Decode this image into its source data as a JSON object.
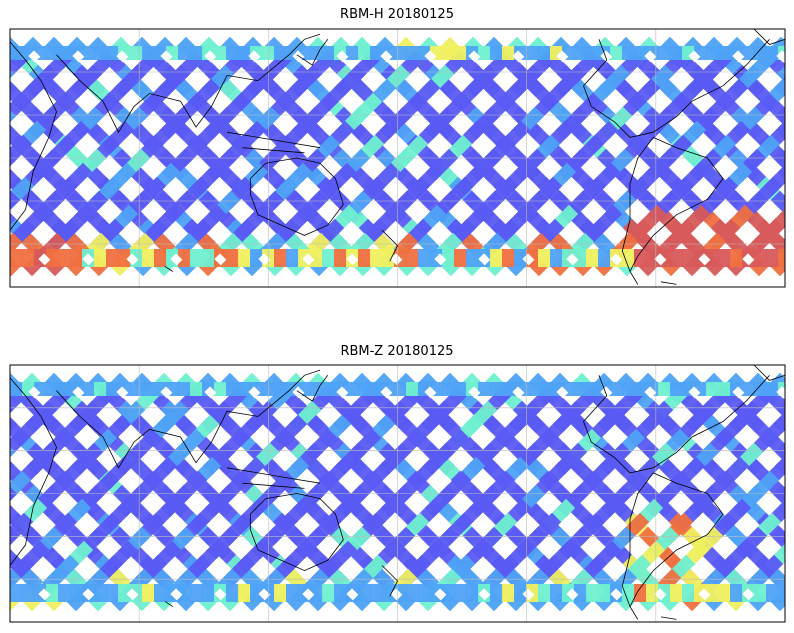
{
  "panels": [
    {
      "title": "RBM-H 20180125",
      "hot_region": "southern-high-latitudes-and-south-america",
      "intensity_profile": "high"
    },
    {
      "title": "RBM-Z 20180125",
      "hot_region": "south-america",
      "intensity_profile": "low"
    }
  ],
  "colors": {
    "low": "#5a5af5",
    "mid_low": "#4fa3f7",
    "mid": "#6ff0d0",
    "mid_high": "#f0f060",
    "high": "#f07040",
    "very_high": "#d85a5a",
    "coastline": "#000000",
    "grid": "#bdbdbd"
  }
}
